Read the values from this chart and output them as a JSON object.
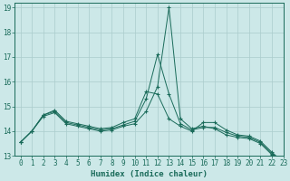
{
  "xlabel": "Humidex (Indice chaleur)",
  "bg_color": "#cce8e8",
  "grid_color": "#aacccc",
  "line_color": "#1a6b5a",
  "xlim": [
    -0.5,
    23
  ],
  "ylim": [
    13,
    19.2
  ],
  "yticks": [
    13,
    14,
    15,
    16,
    17,
    18,
    19
  ],
  "xticks": [
    0,
    1,
    2,
    3,
    4,
    5,
    6,
    7,
    8,
    9,
    10,
    11,
    12,
    13,
    14,
    15,
    16,
    17,
    18,
    19,
    20,
    21,
    22,
    23
  ],
  "series": {
    "line1": [
      13.55,
      14.0,
      14.6,
      14.75,
      14.3,
      14.2,
      14.1,
      14.0,
      14.05,
      14.2,
      14.3,
      14.8,
      15.8,
      19.0,
      14.5,
      14.1,
      14.2,
      14.1,
      13.85,
      13.75,
      13.7,
      13.5,
      13.05,
      12.75
    ],
    "line2": [
      13.55,
      14.0,
      14.65,
      14.8,
      14.35,
      14.25,
      14.15,
      14.05,
      14.1,
      14.25,
      14.4,
      15.3,
      17.1,
      15.5,
      14.3,
      14.05,
      14.15,
      14.15,
      13.95,
      13.8,
      13.75,
      13.55,
      13.1,
      12.75
    ],
    "line3": [
      13.55,
      14.0,
      14.65,
      14.85,
      14.4,
      14.3,
      14.2,
      14.1,
      14.15,
      14.35,
      14.5,
      15.6,
      15.5,
      14.5,
      14.2,
      14.0,
      14.35,
      14.35,
      14.05,
      13.85,
      13.8,
      13.6,
      13.15,
      12.75
    ]
  }
}
